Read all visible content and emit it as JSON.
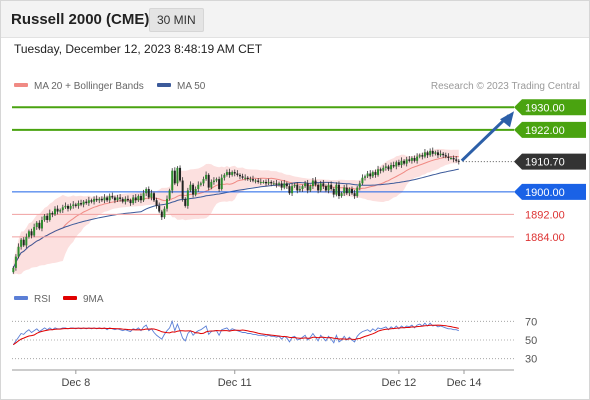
{
  "header": {
    "title": "Russell 2000 (CME)",
    "interval": "30 MIN"
  },
  "timestamp": "Tuesday, December 12, 2023 8:48:19 AM CET",
  "legend": {
    "ma20": {
      "label": "MA 20 + Bollinger Bands",
      "color": "#f08a84"
    },
    "ma50": {
      "label": "MA 50",
      "color": "#3c5a9a"
    },
    "credit": "Research © 2023 Trading Central"
  },
  "rsi_legend": {
    "rsi": {
      "label": "RSI",
      "color": "#5b7fd6"
    },
    "ma9": {
      "label": "9MA",
      "color": "#e00000"
    }
  },
  "colors": {
    "resistance": "#4aa310",
    "support_current": "#1a62e6",
    "support": "#f0a0a0",
    "price": "#333333",
    "arrow": "#2c5fa8",
    "bollinger": "#fbd6d4"
  },
  "chart_data": [
    {
      "type": "candlestick",
      "title": "",
      "ylim": [
        1868,
        1934
      ],
      "levels": [
        {
          "value": 1930.0,
          "label": "1930.00",
          "role": "resistance"
        },
        {
          "value": 1922.0,
          "label": "1922.00",
          "role": "resistance"
        },
        {
          "value": 1910.7,
          "label": "1910.70",
          "role": "price"
        },
        {
          "value": 1900.0,
          "label": "1900.00",
          "role": "support_current"
        },
        {
          "value": 1892.0,
          "label": "1892.00",
          "role": "support"
        },
        {
          "value": 1884.0,
          "label": "1884.00",
          "role": "support"
        }
      ],
      "x_ticks": [
        {
          "label": "Dec 8",
          "index": 24
        },
        {
          "label": "Dec 11",
          "index": 85
        },
        {
          "label": "Dec 12",
          "index": 148
        },
        {
          "label": "Dec 14",
          "index": 173
        }
      ],
      "n_slots": 190,
      "close": [
        1873.0,
        1877.0,
        1880.5,
        1883.0,
        1881.0,
        1884.0,
        1886.0,
        1884.5,
        1887.5,
        1889.0,
        1887.0,
        1890.0,
        1891.5,
        1890.0,
        1892.5,
        1892.0,
        1894.0,
        1893.0,
        1893.5,
        1894.5,
        1895.0,
        1894.0,
        1895.0,
        1895.5,
        1895.0,
        1896.0,
        1895.5,
        1896.5,
        1896.0,
        1897.0,
        1896.5,
        1897.5,
        1897.0,
        1897.5,
        1897.0,
        1898.0,
        1897.0,
        1898.5,
        1898.0,
        1897.0,
        1898.0,
        1897.5,
        1896.5,
        1897.5,
        1897.0,
        1896.0,
        1898.0,
        1897.0,
        1898.5,
        1897.0,
        1899.5,
        1901.0,
        1898.0,
        1899.5,
        1897.0,
        1895.0,
        1893.0,
        1891.0,
        1894.0,
        1897.5,
        1900.5,
        1907.5,
        1903.0,
        1908.5,
        1904.0,
        1897.5,
        1895.0,
        1900.5,
        1902.5,
        1899.0,
        1901.0,
        1902.5,
        1903.0,
        1904.5,
        1906.0,
        1901.5,
        1903.5,
        1904.0,
        1904.5,
        1901.0,
        1905.0,
        1906.0,
        1907.0,
        1906.0,
        1907.0,
        1906.5,
        1906.0,
        1905.5,
        1905.0,
        1905.0,
        1904.5,
        1904.5,
        1904.0,
        1904.0,
        1903.5,
        1903.5,
        1903.5,
        1903.0,
        1903.5,
        1903.0,
        1903.0,
        1902.5,
        1903.0,
        1901.5,
        1903.0,
        1902.0,
        1899.5,
        1902.0,
        1902.5,
        1900.5,
        1901.0,
        1902.0,
        1903.0,
        1900.5,
        1902.0,
        1904.0,
        1902.5,
        1900.5,
        1903.0,
        1902.0,
        1900.5,
        1902.5,
        1901.0,
        1899.0,
        1902.5,
        1898.5,
        1899.5,
        1901.5,
        1899.5,
        1901.0,
        1899.5,
        1898.5,
        1901.5,
        1903.0,
        1905.0,
        1905.5,
        1906.5,
        1905.5,
        1907.0,
        1906.0,
        1908.0,
        1907.5,
        1908.5,
        1909.0,
        1908.0,
        1909.5,
        1909.0,
        1910.5,
        1909.5,
        1911.0,
        1910.0,
        1911.5,
        1911.0,
        1912.0,
        1911.0,
        1912.5,
        1913.0,
        1912.5,
        1914.0,
        1913.0,
        1914.5,
        1913.5,
        1914.0,
        1913.0,
        1913.5,
        1913.0,
        1912.5,
        1912.0,
        1912.0,
        1911.5,
        1911.0,
        1910.7
      ],
      "rsi": [
        45,
        49,
        53,
        57,
        56,
        59,
        61,
        58,
        60,
        62,
        59,
        61,
        63,
        61,
        63,
        61,
        63,
        62,
        62,
        63,
        63,
        62,
        63,
        63,
        62,
        63,
        62,
        63,
        62,
        63,
        62,
        63,
        62,
        63,
        62,
        63,
        61,
        63,
        62,
        61,
        62,
        61,
        60,
        61,
        60,
        59,
        62,
        61,
        63,
        60,
        64,
        66,
        60,
        62,
        58,
        55,
        53,
        51,
        56,
        60,
        63,
        70,
        60,
        67,
        60,
        52,
        49,
        57,
        60,
        55,
        58,
        60,
        61,
        63,
        65,
        56,
        59,
        60,
        60,
        55,
        61,
        62,
        63,
        60,
        62,
        61,
        60,
        59,
        58,
        58,
        57,
        57,
        56,
        56,
        55,
        55,
        55,
        54,
        55,
        54,
        54,
        53,
        54,
        51,
        54,
        52,
        48,
        53,
        54,
        50,
        51,
        53,
        55,
        50,
        53,
        57,
        53,
        49,
        55,
        52,
        49,
        54,
        51,
        47,
        55,
        48,
        50,
        54,
        50,
        53,
        50,
        48,
        54,
        57,
        59,
        60,
        61,
        59,
        62,
        60,
        63,
        62,
        63,
        64,
        61,
        64,
        62,
        65,
        62,
        65,
        63,
        65,
        64,
        66,
        63,
        66,
        67,
        65,
        68,
        65,
        68,
        65,
        66,
        64,
        65,
        64,
        63,
        62,
        62,
        61,
        61,
        60
      ],
      "rsi_levels": [
        70,
        50,
        30
      ],
      "rsi_ylim": [
        20,
        80
      ]
    }
  ]
}
